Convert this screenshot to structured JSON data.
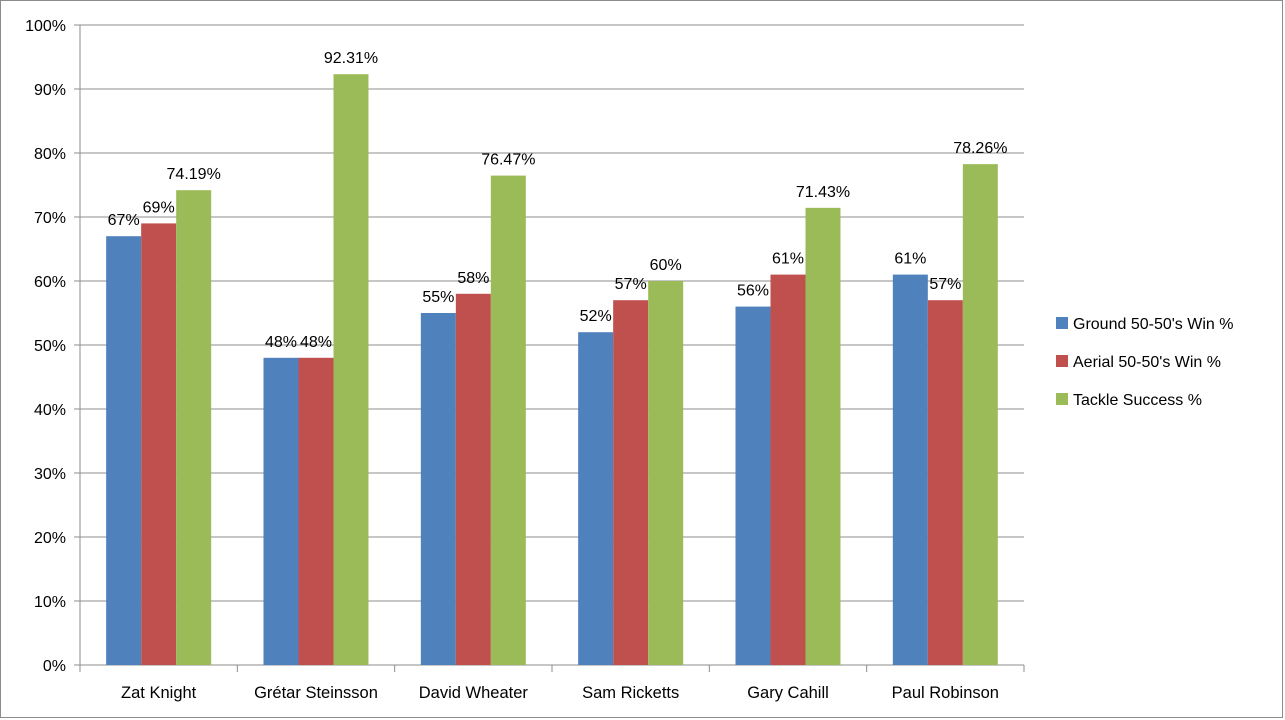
{
  "chart_data": {
    "type": "bar",
    "title": "",
    "xlabel": "",
    "ylabel": "",
    "ylim": [
      0,
      100
    ],
    "yticks": [
      0,
      10,
      20,
      30,
      40,
      50,
      60,
      70,
      80,
      90,
      100
    ],
    "ytick_labels": [
      "0%",
      "10%",
      "20%",
      "30%",
      "40%",
      "50%",
      "60%",
      "70%",
      "80%",
      "90%",
      "100%"
    ],
    "grid": true,
    "legend_position": "right",
    "categories": [
      "Zat Knight",
      "Grétar Steinsson",
      "David Wheater",
      "Sam Ricketts",
      "Gary Cahill",
      "Paul Robinson"
    ],
    "series": [
      {
        "name": "Ground 50-50's Win %",
        "color": "#4f81bd",
        "values": [
          67,
          48,
          55,
          52,
          56,
          61
        ],
        "labels": [
          "67%",
          "48%",
          "55%",
          "52%",
          "56%",
          "61%"
        ]
      },
      {
        "name": "Aerial 50-50's Win %",
        "color": "#c0504d",
        "values": [
          69,
          48,
          58,
          57,
          61,
          57
        ],
        "labels": [
          "69%",
          "48%",
          "58%",
          "57%",
          "61%",
          "57%"
        ]
      },
      {
        "name": "Tackle Success %",
        "color": "#9bbb59",
        "values": [
          74.19,
          92.31,
          76.47,
          60,
          71.43,
          78.26
        ],
        "labels": [
          "74.19%",
          "92.31%",
          "76.47%",
          "60%",
          "71.43%",
          "78.26%"
        ]
      }
    ]
  }
}
